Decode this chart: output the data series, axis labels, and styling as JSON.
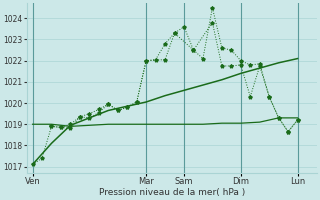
{
  "background_color": "#cce8e8",
  "grid_color": "#aad4d4",
  "line_color": "#1a6b1a",
  "text_color": "#333333",
  "xlabel_text": "Pression niveau de la mer( hPa )",
  "ylim": [
    1016.7,
    1024.7
  ],
  "yticks": [
    1017,
    1018,
    1019,
    1020,
    1021,
    1022,
    1023,
    1024
  ],
  "day_labels": [
    "Ven",
    "",
    "Mar",
    "Sam",
    "",
    "Dim",
    "",
    "Lun"
  ],
  "vline_positions": [
    0,
    6,
    8,
    11,
    14
  ],
  "xlim": [
    -0.3,
    15.0
  ],
  "tick_label_positions": [
    0,
    6,
    8,
    11,
    14
  ],
  "tick_labels": [
    "Ven",
    "Mar",
    "Sam",
    "Dim",
    "Lun"
  ],
  "s1_x": [
    0,
    0.5,
    1.0,
    1.5,
    2.0,
    2.5,
    3.0,
    3.5,
    4.0,
    4.5,
    5.0,
    5.5,
    6.0,
    6.5,
    7.0,
    7.5,
    8.0,
    8.5,
    9.0,
    9.5,
    10.0,
    10.5,
    11.0,
    11.5,
    12.0,
    12.5,
    13.0,
    13.5,
    14.0
  ],
  "s1_y": [
    1017.1,
    1017.4,
    1018.9,
    1018.85,
    1018.8,
    1019.35,
    1019.3,
    1019.55,
    1019.95,
    1019.65,
    1019.8,
    1020.05,
    1022.0,
    1022.05,
    1022.8,
    1023.3,
    1023.6,
    1022.5,
    1022.1,
    1024.5,
    1022.6,
    1022.5,
    1022.0,
    1021.8,
    1021.85,
    1020.3,
    1019.3,
    1018.65,
    1019.2
  ],
  "s2_x": [
    0,
    1,
    2,
    3,
    4,
    5,
    6,
    7,
    8,
    9,
    10,
    11,
    12,
    13,
    14
  ],
  "s2_y": [
    1019.0,
    1019.0,
    1018.9,
    1018.95,
    1019.0,
    1019.0,
    1019.0,
    1019.0,
    1019.0,
    1019.0,
    1019.05,
    1019.05,
    1019.1,
    1019.3,
    1019.3
  ],
  "s3_x": [
    0,
    1,
    2,
    3,
    4,
    5,
    6,
    7,
    8,
    9,
    10,
    11,
    12,
    13,
    14
  ],
  "s3_y": [
    1017.1,
    1018.1,
    1018.95,
    1019.3,
    1019.65,
    1019.85,
    1020.05,
    1020.35,
    1020.6,
    1020.85,
    1021.1,
    1021.4,
    1021.65,
    1021.9,
    1022.1
  ],
  "s4_x": [
    1.0,
    1.5,
    2.0,
    2.5,
    3.0,
    3.5,
    4.0,
    4.5,
    5.0,
    5.5,
    6.0,
    7.0,
    7.5,
    8.5,
    9.5,
    10.0,
    10.5,
    11.0,
    11.5,
    12.0,
    12.5,
    13.0,
    13.5,
    14.0
  ],
  "s4_y": [
    1018.9,
    1018.85,
    1019.0,
    1019.35,
    1019.5,
    1019.7,
    1019.95,
    1019.65,
    1019.8,
    1020.05,
    1022.0,
    1022.05,
    1023.3,
    1022.5,
    1023.8,
    1021.75,
    1021.75,
    1021.8,
    1020.3,
    1021.75,
    1020.3,
    1019.3,
    1018.65,
    1019.2
  ]
}
